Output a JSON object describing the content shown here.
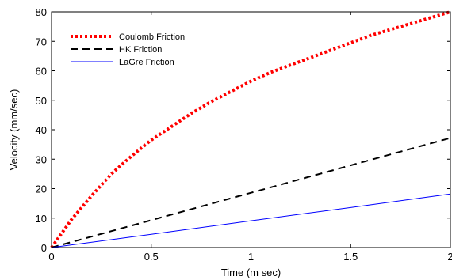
{
  "chart_data": {
    "type": "line",
    "xlabel": "Time (m sec)",
    "ylabel": "Velocity (mm/sec)",
    "xlim": [
      0,
      2
    ],
    "ylim": [
      0,
      80
    ],
    "xticks": [
      0,
      0.5,
      1,
      1.5,
      2
    ],
    "yticks": [
      0,
      10,
      20,
      30,
      40,
      50,
      60,
      70,
      80
    ],
    "xtick_labels": [
      "0",
      "0.5",
      "1",
      "1.5",
      "2"
    ],
    "ytick_labels": [
      "0",
      "10",
      "20",
      "30",
      "40",
      "50",
      "60",
      "70",
      "80"
    ],
    "grid": false,
    "legend_position": "top-left",
    "series": [
      {
        "name": "Coulomb Friction",
        "color": "#ff0000",
        "style": "dotted",
        "x": [
          0,
          0.1,
          0.2,
          0.3,
          0.4,
          0.5,
          0.6,
          0.7,
          0.8,
          0.9,
          1.0,
          1.1,
          1.2,
          1.3,
          1.4,
          1.5,
          1.6,
          1.7,
          1.8,
          1.9,
          2.0
        ],
        "y": [
          0,
          9.5,
          17.5,
          25,
          31,
          36.5,
          41,
          45.5,
          49.5,
          53,
          56.5,
          59.5,
          62,
          64.5,
          67,
          69.5,
          72,
          74,
          76,
          78,
          80
        ]
      },
      {
        "name": "HK Friction",
        "color": "#000000",
        "style": "dashed",
        "x": [
          0,
          0.5,
          1.0,
          1.5,
          2.0
        ],
        "y": [
          0,
          9.3,
          18.6,
          27.9,
          37.2
        ]
      },
      {
        "name": "LaGre Friction",
        "color": "#0000ff",
        "style": "solid",
        "x": [
          0,
          0.5,
          1.0,
          1.5,
          2.0
        ],
        "y": [
          0,
          4.5,
          9.1,
          13.6,
          18.2
        ]
      }
    ]
  }
}
